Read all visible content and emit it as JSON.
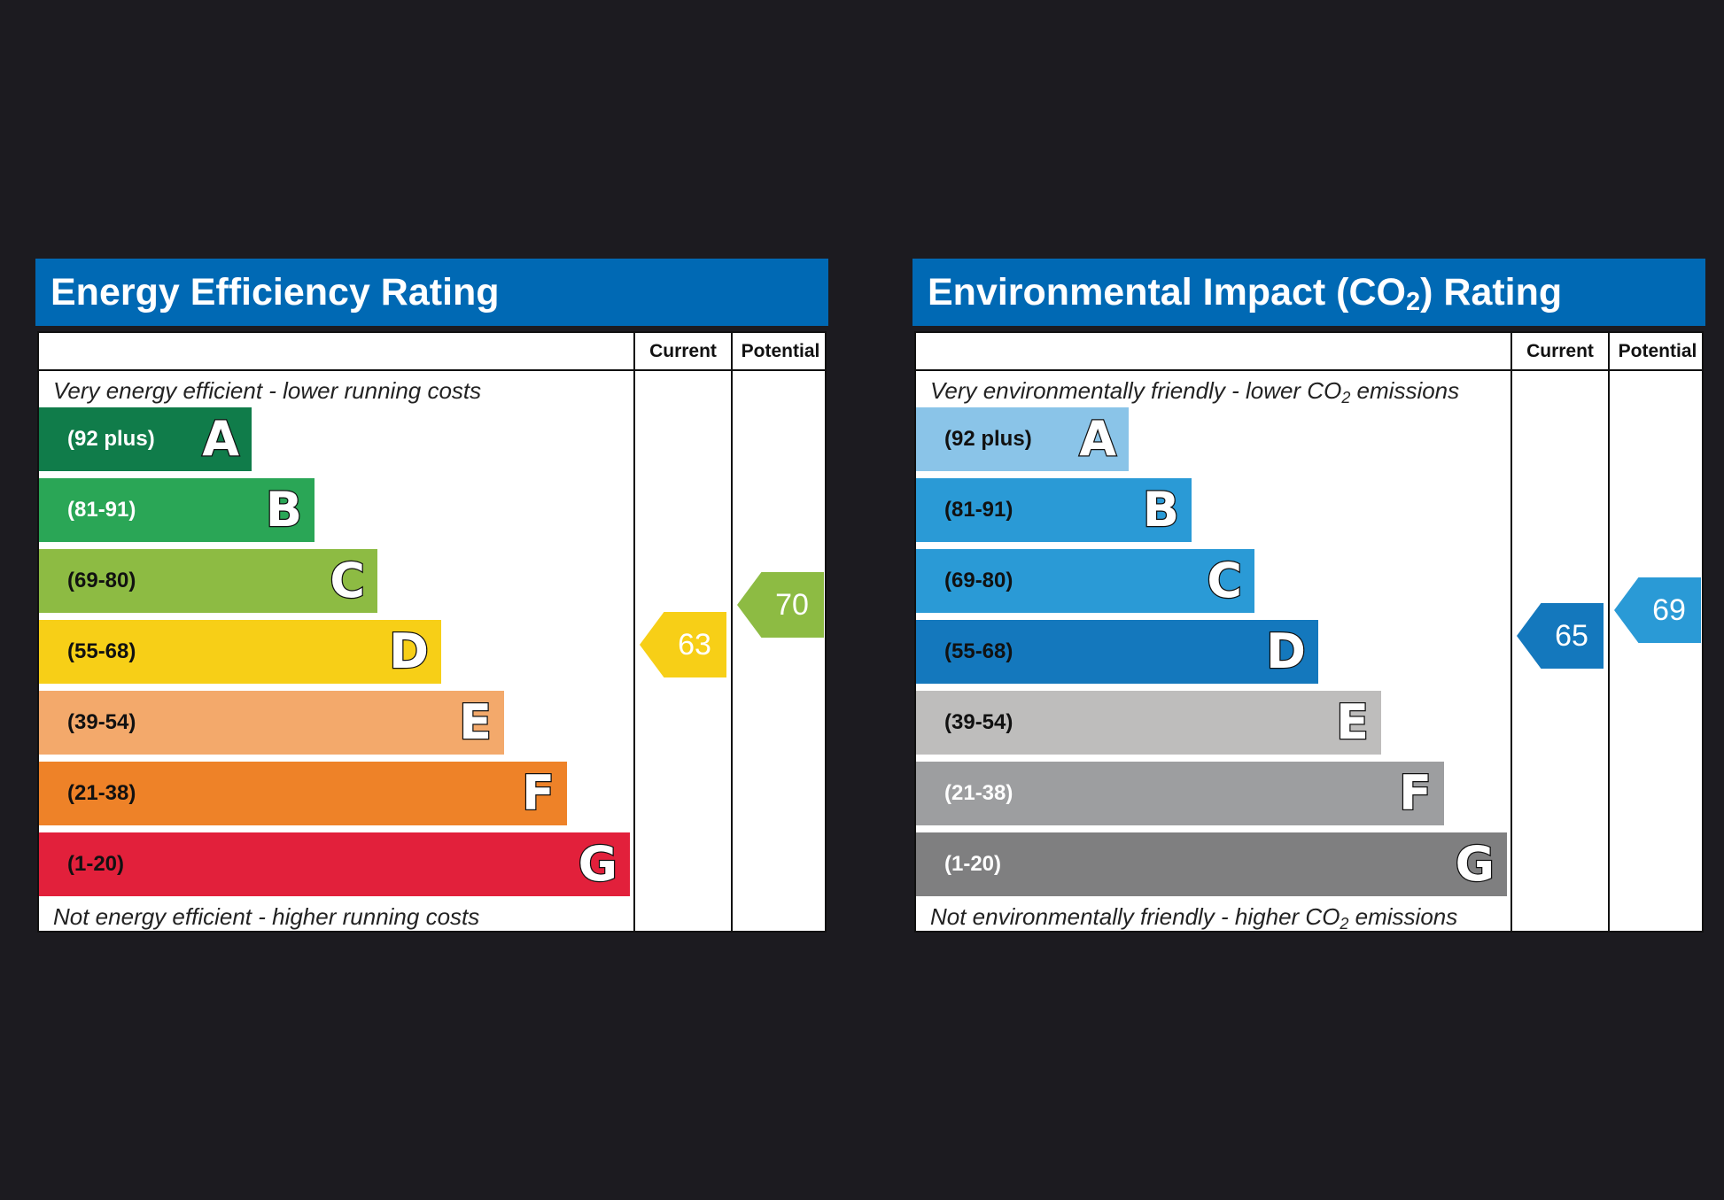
{
  "chart_data": [
    {
      "type": "bar",
      "title": "Energy Efficiency Rating",
      "column_headers": {
        "current": "Current",
        "potential": "Potential"
      },
      "caption_top": "Very energy efficient - lower running costs",
      "caption_bottom": "Not energy efficient - higher running costs",
      "bands": [
        {
          "range": "(92 plus)",
          "letter": "A",
          "min": 92,
          "max": 100,
          "color": "#107c4a",
          "text_color": "#ffffff"
        },
        {
          "range": "(81-91)",
          "letter": "B",
          "min": 81,
          "max": 91,
          "color": "#2aa656",
          "text_color": "#ffffff"
        },
        {
          "range": "(69-80)",
          "letter": "C",
          "min": 69,
          "max": 80,
          "color": "#8dbb43",
          "text_color": "#111111"
        },
        {
          "range": "(55-68)",
          "letter": "D",
          "min": 55,
          "max": 68,
          "color": "#f7cf17",
          "text_color": "#111111"
        },
        {
          "range": "(39-54)",
          "letter": "E",
          "min": 39,
          "max": 54,
          "color": "#f3a96b",
          "text_color": "#111111"
        },
        {
          "range": "(21-38)",
          "letter": "F",
          "min": 21,
          "max": 38,
          "color": "#ee8228",
          "text_color": "#111111"
        },
        {
          "range": "(1-20)",
          "letter": "G",
          "min": 1,
          "max": 20,
          "color": "#e2203b",
          "text_color": "#111111"
        }
      ],
      "current": {
        "value": 63,
        "color": "#f7cf17"
      },
      "potential": {
        "value": 70,
        "color": "#8dbb43"
      }
    },
    {
      "type": "bar",
      "title_prefix": "Environmental Impact (CO",
      "title_sub": "2",
      "title_suffix": ") Rating",
      "column_headers": {
        "current": "Current",
        "potential": "Potential"
      },
      "caption_top_prefix": "Very environmentally friendly - lower CO",
      "caption_top_sub": "2",
      "caption_top_suffix": " emissions",
      "caption_bottom_prefix": "Not environmentally friendly - higher CO",
      "caption_bottom_sub": "2",
      "caption_bottom_suffix": " emissions",
      "bands": [
        {
          "range": "(92 plus)",
          "letter": "A",
          "min": 92,
          "max": 100,
          "color": "#8ac4e8",
          "text_color": "#111111"
        },
        {
          "range": "(81-91)",
          "letter": "B",
          "min": 81,
          "max": 91,
          "color": "#2a9ad6",
          "text_color": "#111111"
        },
        {
          "range": "(69-80)",
          "letter": "C",
          "min": 69,
          "max": 80,
          "color": "#2a9ad6",
          "text_color": "#111111"
        },
        {
          "range": "(55-68)",
          "letter": "D",
          "min": 55,
          "max": 68,
          "color": "#1478bd",
          "text_color": "#111111"
        },
        {
          "range": "(39-54)",
          "letter": "E",
          "min": 39,
          "max": 54,
          "color": "#bebdbc",
          "text_color": "#111111"
        },
        {
          "range": "(21-38)",
          "letter": "F",
          "min": 21,
          "max": 38,
          "color": "#9d9ea0",
          "text_color": "#ffffff"
        },
        {
          "range": "(1-20)",
          "letter": "G",
          "min": 1,
          "max": 20,
          "color": "#7f7f80",
          "text_color": "#ffffff"
        }
      ],
      "current": {
        "value": 65,
        "color": "#1478bd"
      },
      "potential": {
        "value": 69,
        "color": "#2a9ad6"
      }
    }
  ]
}
